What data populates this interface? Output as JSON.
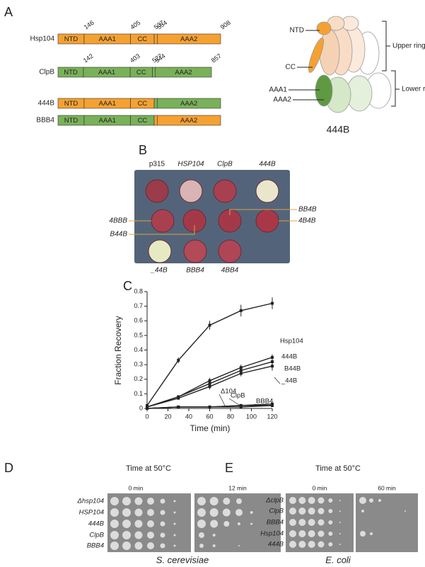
{
  "panel_a": {
    "letter": "A",
    "constructs": [
      {
        "name": "Hsp104",
        "domains": [
          "NTD",
          "AAA1",
          "CC",
          "AAA2"
        ],
        "colors": [
          "#f5a132",
          "#f5a132",
          "#f5a132",
          "#f5a132"
        ],
        "boundaries": [
          146,
          405,
          537,
          554,
          908
        ]
      },
      {
        "name": "ClpB",
        "domains": [
          "NTD",
          "AAA1",
          "CC",
          "AAA2"
        ],
        "colors": [
          "#79b159",
          "#79b159",
          "#79b159",
          "#79b159"
        ],
        "boundaries": [
          142,
          403,
          527,
          544,
          857
        ]
      },
      {
        "name": "444B",
        "domains": [
          "NTD",
          "AAA1",
          "CC",
          "AAA2"
        ],
        "colors": [
          "#f5a132",
          "#f5a132",
          "#f5a132",
          "#79b159"
        ]
      },
      {
        "name": "BBB4",
        "domains": [
          "NTD",
          "AAA1",
          "CC",
          "AAA2"
        ],
        "colors": [
          "#79b159",
          "#79b159",
          "#79b159",
          "#f5a132"
        ]
      }
    ],
    "cartoon": {
      "labels": [
        "NTD",
        "CC",
        "AAA1",
        "AAA2"
      ],
      "rings": [
        "Upper ring",
        "Lower ring"
      ],
      "name": "444B"
    }
  },
  "panel_b": {
    "letter": "B",
    "top": [
      "p315",
      "HSP104",
      "ClpB",
      "444B"
    ],
    "left": [
      "4BBB",
      "B44B"
    ],
    "right": [
      "BB4B",
      "4B4B"
    ],
    "bottom": [
      "_44B",
      "BBB4",
      "4BB4"
    ]
  },
  "panel_c": {
    "letter": "C"
  },
  "chart_data": {
    "type": "line",
    "x_label": "Time (min)",
    "y_label": "Fraction Recovery",
    "x": [
      0,
      30,
      60,
      90,
      120
    ],
    "xlim": [
      0,
      120
    ],
    "xticks": [
      0,
      20,
      40,
      60,
      80,
      100,
      120
    ],
    "ylim": [
      0,
      0.8
    ],
    "yticks": [
      0,
      0.1,
      0.2,
      0.3,
      0.4,
      0.5,
      0.6,
      0.7,
      0.8
    ],
    "series": [
      {
        "name": "Hsp104",
        "color": "#222222",
        "values": [
          0.02,
          0.33,
          0.57,
          0.67,
          0.72
        ],
        "errors": [
          0.01,
          0.02,
          0.03,
          0.04,
          0.04
        ]
      },
      {
        "name": "444B",
        "color": "#222222",
        "values": [
          0.01,
          0.08,
          0.19,
          0.28,
          0.35
        ],
        "errors": [
          0.01,
          0.01,
          0.02,
          0.02,
          0.02
        ]
      },
      {
        "name": "B44B",
        "color": "#222222",
        "values": [
          0.01,
          0.08,
          0.17,
          0.26,
          0.32
        ],
        "errors": [
          0.01,
          0.01,
          0.02,
          0.02,
          0.02
        ]
      },
      {
        "name": "_44B",
        "color": "#222222",
        "values": [
          0.01,
          0.07,
          0.15,
          0.24,
          0.29
        ],
        "errors": [
          0.01,
          0.01,
          0.02,
          0.02,
          0.03
        ]
      },
      {
        "name": "Δ104",
        "color": "#222222",
        "values": [
          0,
          0.01,
          0.01,
          0.01,
          0.02
        ],
        "errors": [
          0,
          0,
          0,
          0,
          0
        ]
      },
      {
        "name": "ClpB",
        "color": "#222222",
        "values": [
          0,
          0.01,
          0.01,
          0.02,
          0.02
        ],
        "errors": [
          0,
          0,
          0,
          0,
          0
        ]
      },
      {
        "name": "BBB4",
        "color": "#222222",
        "values": [
          0,
          0.01,
          0.01,
          0.02,
          0.03
        ],
        "errors": [
          0,
          0,
          0,
          0,
          0
        ]
      }
    ]
  },
  "panel_d": {
    "letter": "D",
    "heading": "Time at 50°C",
    "times": [
      "0 min",
      "12 min"
    ],
    "strains": [
      "Δhsp104",
      "HSP104",
      "444B",
      "ClpB",
      "BBB4"
    ],
    "organism": "S. cerevisiae"
  },
  "panel_e": {
    "letter": "E",
    "heading": "Time at 50°C",
    "times": [
      "0 min",
      "60 min"
    ],
    "strains": [
      "ΔclpB",
      "ClpB",
      "BBB4",
      "Hsp104",
      "444B"
    ],
    "organism": "E. coli"
  }
}
